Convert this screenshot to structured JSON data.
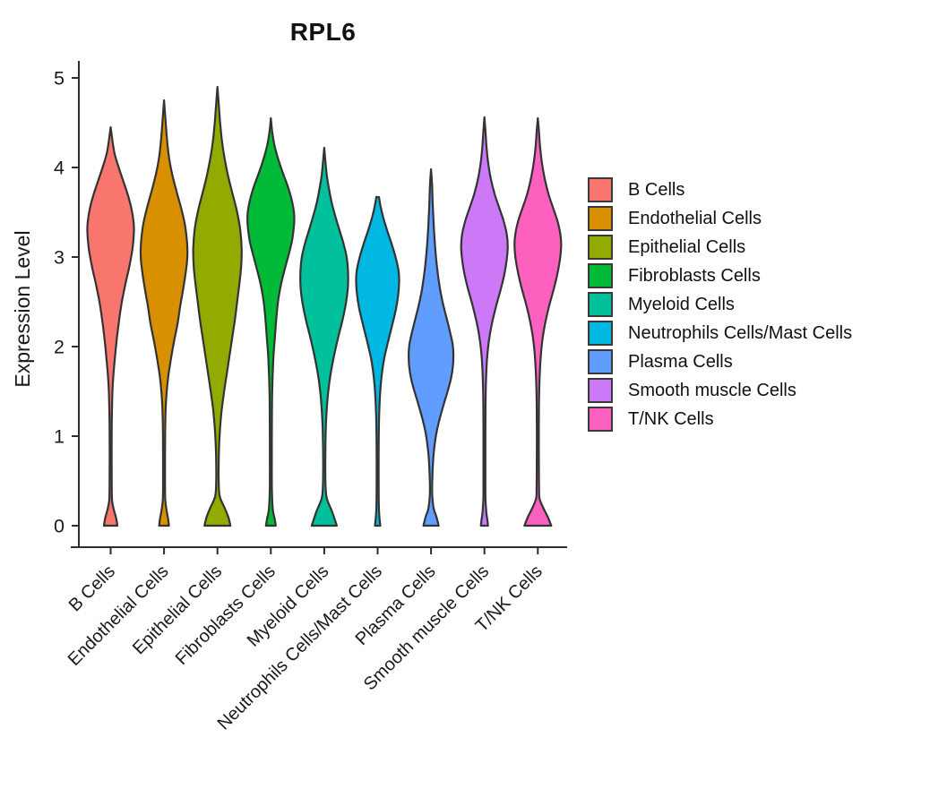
{
  "chart_data": {
    "type": "violin",
    "title": "RPL6",
    "ylabel": "Expression Level",
    "xlabel": "",
    "ylim": [
      0,
      5
    ],
    "y_ticks": [
      0,
      1,
      2,
      3,
      4,
      5
    ],
    "grid": false,
    "legend_position": "right",
    "categories": [
      "B Cells",
      "Endothelial Cells",
      "Epithelial Cells",
      "Fibroblasts Cells",
      "Myeloid Cells",
      "Neutrophils Cells/Mast Cells",
      "Plasma Cells",
      "Smooth muscle Cells",
      "T/NK Cells"
    ],
    "series": [
      {
        "name": "B Cells",
        "color": "#F8766D",
        "max_expression": 4.45,
        "peak_expression": 3.3,
        "profile": [
          [
            4.45,
            0
          ],
          [
            4.3,
            2
          ],
          [
            4.15,
            4.5
          ],
          [
            4.0,
            9
          ],
          [
            3.85,
            14
          ],
          [
            3.7,
            19
          ],
          [
            3.55,
            23
          ],
          [
            3.4,
            25.5
          ],
          [
            3.28,
            26
          ],
          [
            3.1,
            24.5
          ],
          [
            2.9,
            21
          ],
          [
            2.7,
            16.5
          ],
          [
            2.5,
            12.5
          ],
          [
            2.3,
            9.5
          ],
          [
            2.1,
            7
          ],
          [
            1.9,
            5
          ],
          [
            1.7,
            3.2
          ],
          [
            1.5,
            2
          ],
          [
            1.2,
            1.3
          ],
          [
            0.8,
            1.1
          ],
          [
            0.45,
            1.2
          ],
          [
            0.28,
            1.6
          ],
          [
            0.18,
            3.5
          ],
          [
            0.09,
            6
          ],
          [
            0,
            7.5
          ]
        ]
      },
      {
        "name": "Endothelial Cells",
        "color": "#D89000",
        "max_expression": 4.75,
        "peak_expression": 3.05,
        "profile": [
          [
            4.75,
            0
          ],
          [
            4.55,
            1.5
          ],
          [
            4.35,
            3
          ],
          [
            4.15,
            5
          ],
          [
            3.95,
            8.5
          ],
          [
            3.75,
            13.5
          ],
          [
            3.55,
            19
          ],
          [
            3.35,
            23.5
          ],
          [
            3.15,
            25.8
          ],
          [
            3.0,
            26
          ],
          [
            2.85,
            24.5
          ],
          [
            2.65,
            21.5
          ],
          [
            2.45,
            18
          ],
          [
            2.25,
            15
          ],
          [
            2.05,
            11
          ],
          [
            1.85,
            7.5
          ],
          [
            1.65,
            4.5
          ],
          [
            1.45,
            2.6
          ],
          [
            1.25,
            1.6
          ],
          [
            1.0,
            1.2
          ],
          [
            0.6,
            1.1
          ],
          [
            0.3,
            1.3
          ],
          [
            0.16,
            3
          ],
          [
            0.08,
            4.5
          ],
          [
            0,
            5.5
          ]
        ]
      },
      {
        "name": "Epithelial Cells",
        "color": "#93AA00",
        "max_expression": 4.9,
        "peak_expression": 3.05,
        "profile": [
          [
            4.9,
            0
          ],
          [
            4.7,
            1.5
          ],
          [
            4.5,
            3
          ],
          [
            4.3,
            5
          ],
          [
            4.1,
            8
          ],
          [
            3.9,
            12
          ],
          [
            3.7,
            17
          ],
          [
            3.5,
            22
          ],
          [
            3.3,
            25.5
          ],
          [
            3.1,
            27
          ],
          [
            2.9,
            26.5
          ],
          [
            2.7,
            24.5
          ],
          [
            2.5,
            22
          ],
          [
            2.3,
            19.5
          ],
          [
            2.1,
            16.5
          ],
          [
            1.9,
            13.5
          ],
          [
            1.7,
            10.5
          ],
          [
            1.5,
            7.5
          ],
          [
            1.3,
            4.8
          ],
          [
            1.1,
            3
          ],
          [
            0.9,
            1.9
          ],
          [
            0.7,
            1.4
          ],
          [
            0.5,
            1.4
          ],
          [
            0.33,
            2.5
          ],
          [
            0.2,
            8
          ],
          [
            0.1,
            12
          ],
          [
            0,
            14.5
          ]
        ]
      },
      {
        "name": "Fibroblasts Cells",
        "color": "#00BA38",
        "max_expression": 4.55,
        "peak_expression": 3.4,
        "profile": [
          [
            4.55,
            0
          ],
          [
            4.4,
            1.5
          ],
          [
            4.25,
            4
          ],
          [
            4.1,
            8
          ],
          [
            3.95,
            13
          ],
          [
            3.8,
            18.5
          ],
          [
            3.65,
            23
          ],
          [
            3.5,
            25.8
          ],
          [
            3.38,
            26
          ],
          [
            3.2,
            24
          ],
          [
            3.05,
            20.5
          ],
          [
            2.9,
            16.5
          ],
          [
            2.7,
            11.5
          ],
          [
            2.5,
            8
          ],
          [
            2.3,
            6
          ],
          [
            2.1,
            4.5
          ],
          [
            1.9,
            3
          ],
          [
            1.7,
            2.1
          ],
          [
            1.5,
            1.5
          ],
          [
            1.2,
            1.2
          ],
          [
            0.8,
            1.1
          ],
          [
            0.4,
            1.2
          ],
          [
            0.18,
            2.2
          ],
          [
            0.08,
            4.2
          ],
          [
            0,
            5.5
          ]
        ]
      },
      {
        "name": "Myeloid Cells",
        "color": "#00C19C",
        "max_expression": 4.22,
        "peak_expression": 2.8,
        "profile": [
          [
            4.22,
            0
          ],
          [
            4.05,
            1.5
          ],
          [
            3.9,
            3
          ],
          [
            3.75,
            5.5
          ],
          [
            3.6,
            8.5
          ],
          [
            3.45,
            12.5
          ],
          [
            3.3,
            17
          ],
          [
            3.15,
            21.5
          ],
          [
            3.0,
            25
          ],
          [
            2.85,
            26.5
          ],
          [
            2.68,
            26.5
          ],
          [
            2.5,
            24.5
          ],
          [
            2.3,
            20.5
          ],
          [
            2.1,
            15.5
          ],
          [
            1.9,
            11
          ],
          [
            1.7,
            7.2
          ],
          [
            1.5,
            4.5
          ],
          [
            1.3,
            2.8
          ],
          [
            1.1,
            1.8
          ],
          [
            0.85,
            1.3
          ],
          [
            0.6,
            1.2
          ],
          [
            0.42,
            1.6
          ],
          [
            0.3,
            3
          ],
          [
            0.15,
            9
          ],
          [
            0,
            14
          ]
        ]
      },
      {
        "name": "Neutrophils Cells/Mast Cells",
        "color": "#00B8E1",
        "max_expression": 3.67,
        "peak_expression": 2.72,
        "profile": [
          [
            3.67,
            1.5
          ],
          [
            3.58,
            3
          ],
          [
            3.45,
            6
          ],
          [
            3.3,
            10.5
          ],
          [
            3.15,
            15.5
          ],
          [
            3.0,
            20
          ],
          [
            2.85,
            23.3
          ],
          [
            2.72,
            24
          ],
          [
            2.58,
            23
          ],
          [
            2.42,
            20.5
          ],
          [
            2.25,
            16.5
          ],
          [
            2.05,
            11.5
          ],
          [
            1.85,
            7
          ],
          [
            1.65,
            4.2
          ],
          [
            1.45,
            2.6
          ],
          [
            1.2,
            1.6
          ],
          [
            0.95,
            1.2
          ],
          [
            0.6,
            1.1
          ],
          [
            0.3,
            1.2
          ],
          [
            0.12,
            1.8
          ],
          [
            0,
            3
          ]
        ]
      },
      {
        "name": "Plasma Cells",
        "color": "#619CFF",
        "max_expression": 3.98,
        "peak_expression": 1.9,
        "profile": [
          [
            3.98,
            0
          ],
          [
            3.82,
            1.1
          ],
          [
            3.65,
            1.7
          ],
          [
            3.48,
            2.4
          ],
          [
            3.3,
            3.3
          ],
          [
            3.12,
            4.5
          ],
          [
            2.95,
            6
          ],
          [
            2.78,
            8
          ],
          [
            2.6,
            10.8
          ],
          [
            2.45,
            14
          ],
          [
            2.3,
            17.8
          ],
          [
            2.15,
            21.5
          ],
          [
            2.02,
            24.2
          ],
          [
            1.9,
            25
          ],
          [
            1.77,
            24.3
          ],
          [
            1.63,
            22
          ],
          [
            1.5,
            18.5
          ],
          [
            1.35,
            14
          ],
          [
            1.2,
            9.8
          ],
          [
            1.05,
            6.3
          ],
          [
            0.9,
            4
          ],
          [
            0.75,
            2.5
          ],
          [
            0.55,
            1.5
          ],
          [
            0.35,
            1.3
          ],
          [
            0.19,
            3
          ],
          [
            0.1,
            6
          ],
          [
            0,
            8.5
          ]
        ]
      },
      {
        "name": "Smooth muscle Cells",
        "color": "#CC79F8",
        "max_expression": 4.56,
        "peak_expression": 3.12,
        "profile": [
          [
            4.56,
            0
          ],
          [
            4.4,
            1.2
          ],
          [
            4.22,
            2.4
          ],
          [
            4.05,
            4.2
          ],
          [
            3.88,
            7
          ],
          [
            3.7,
            11.5
          ],
          [
            3.55,
            16.5
          ],
          [
            3.4,
            21.5
          ],
          [
            3.25,
            25
          ],
          [
            3.12,
            26
          ],
          [
            2.98,
            25
          ],
          [
            2.82,
            22.5
          ],
          [
            2.65,
            18.5
          ],
          [
            2.45,
            13
          ],
          [
            2.25,
            8.2
          ],
          [
            2.05,
            4.8
          ],
          [
            1.85,
            2.8
          ],
          [
            1.6,
            1.7
          ],
          [
            1.3,
            1.2
          ],
          [
            0.9,
            1.1
          ],
          [
            0.55,
            1.1
          ],
          [
            0.3,
            1.2
          ],
          [
            0.14,
            2.2
          ],
          [
            0.07,
            3.2
          ],
          [
            0,
            4
          ]
        ]
      },
      {
        "name": "T/NK Cells",
        "color": "#FC61C0",
        "max_expression": 4.55,
        "peak_expression": 3.12,
        "profile": [
          [
            4.55,
            0
          ],
          [
            4.4,
            1.3
          ],
          [
            4.22,
            2.6
          ],
          [
            4.05,
            4.6
          ],
          [
            3.88,
            7.6
          ],
          [
            3.7,
            12
          ],
          [
            3.55,
            17
          ],
          [
            3.4,
            22
          ],
          [
            3.25,
            25.2
          ],
          [
            3.12,
            26
          ],
          [
            2.98,
            24.8
          ],
          [
            2.82,
            22
          ],
          [
            2.65,
            18
          ],
          [
            2.45,
            12.5
          ],
          [
            2.25,
            8
          ],
          [
            2.05,
            4.8
          ],
          [
            1.85,
            3
          ],
          [
            1.6,
            1.8
          ],
          [
            1.3,
            1.2
          ],
          [
            0.95,
            1.1
          ],
          [
            0.6,
            1.2
          ],
          [
            0.4,
            1.4
          ],
          [
            0.3,
            2
          ],
          [
            0.2,
            6
          ],
          [
            0.1,
            11
          ],
          [
            0,
            15
          ]
        ]
      }
    ],
    "style": {
      "outline_color": "#333333",
      "axis_color": "#2d2d2d",
      "text_color": "#1a1a1a",
      "background": "#ffffff"
    }
  }
}
